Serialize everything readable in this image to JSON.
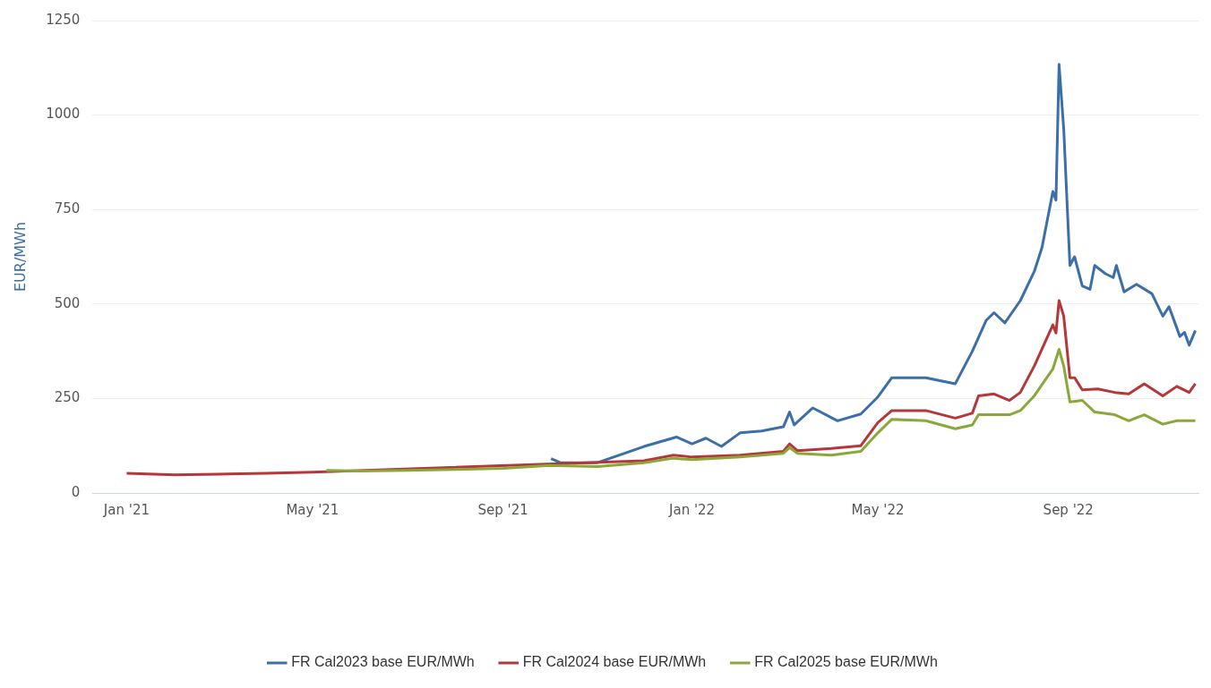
{
  "chart_data": {
    "type": "line",
    "ylabel": "EUR/MWh",
    "xlim": [
      "2020-12-10",
      "2022-11-24"
    ],
    "xticks": [
      {
        "value": "2021-01-01",
        "label": "Jan '21"
      },
      {
        "value": "2021-05-01",
        "label": "May '21"
      },
      {
        "value": "2021-09-01",
        "label": "Sep '21"
      },
      {
        "value": "2022-01-01",
        "label": "Jan '22"
      },
      {
        "value": "2022-05-01",
        "label": "May '22"
      },
      {
        "value": "2022-09-01",
        "label": "Sep '22"
      }
    ],
    "ylim": [
      0,
      1250
    ],
    "yticks": [
      0,
      250,
      500,
      750,
      1000,
      1250
    ],
    "grid": "y",
    "legend": "bottom",
    "marker": "none",
    "line_style": "solid",
    "series": [
      {
        "name": "FR Cal2023 base EUR/MWh",
        "color": "#3c6ea8",
        "x": [
          "2021-10-02",
          "2021-10-08",
          "2021-11-01",
          "2021-12-01",
          "2021-12-22",
          "2022-01-01",
          "2022-01-10",
          "2022-01-20",
          "2022-02-01",
          "2022-02-15",
          "2022-03-01",
          "2022-03-05",
          "2022-03-08",
          "2022-03-20",
          "2022-04-05",
          "2022-04-20",
          "2022-05-01",
          "2022-05-10",
          "2022-06-01",
          "2022-06-20",
          "2022-07-01",
          "2022-07-10",
          "2022-07-15",
          "2022-07-22",
          "2022-08-01",
          "2022-08-10",
          "2022-08-15",
          "2022-08-22",
          "2022-08-24",
          "2022-08-26",
          "2022-08-29",
          "2022-09-02",
          "2022-09-05",
          "2022-09-10",
          "2022-09-15",
          "2022-09-18",
          "2022-09-25",
          "2022-09-30",
          "2022-10-02",
          "2022-10-07",
          "2022-10-15",
          "2022-10-25",
          "2022-11-01",
          "2022-11-05",
          "2022-11-12",
          "2022-11-15",
          "2022-11-18",
          "2022-11-22"
        ],
        "values": [
          91,
          80,
          80,
          123,
          148,
          130,
          145,
          123,
          159,
          164,
          175,
          214,
          180,
          225,
          191,
          209,
          254,
          305,
          305,
          289,
          375,
          457,
          477,
          450,
          509,
          586,
          650,
          798,
          775,
          1134,
          964,
          602,
          625,
          548,
          539,
          602,
          580,
          570,
          602,
          532,
          552,
          527,
          468,
          493,
          414,
          425,
          391,
          430
        ]
      },
      {
        "name": "FR Cal2024 base EUR/MWh",
        "color": "#b5373a",
        "x": [
          "2021-01-01",
          "2021-02-01",
          "2021-03-01",
          "2021-04-01",
          "2021-05-01",
          "2021-12-01",
          "2021-12-20",
          "2022-01-01",
          "2022-02-01",
          "2022-03-01",
          "2022-03-05",
          "2022-03-10",
          "2022-04-01",
          "2022-04-20",
          "2022-05-01",
          "2022-05-10",
          "2022-06-01",
          "2022-06-20",
          "2022-07-01",
          "2022-07-05",
          "2022-07-15",
          "2022-07-25",
          "2022-08-01",
          "2022-08-10",
          "2022-08-22",
          "2022-08-24",
          "2022-08-26",
          "2022-08-29",
          "2022-09-02",
          "2022-09-05",
          "2022-09-10",
          "2022-09-20",
          "2022-10-01",
          "2022-10-10",
          "2022-10-20",
          "2022-11-01",
          "2022-11-10",
          "2022-11-18",
          "2022-11-22"
        ],
        "values": [
          52,
          48,
          50,
          52,
          55,
          85,
          100,
          95,
          100,
          110,
          130,
          112,
          118,
          125,
          186,
          218,
          218,
          198,
          211,
          257,
          262,
          245,
          266,
          336,
          445,
          423,
          509,
          468,
          305,
          305,
          273,
          275,
          266,
          262,
          289,
          257,
          282,
          266,
          289
        ]
      },
      {
        "name": "FR Cal2025 base EUR/MWh",
        "color": "#8aa83a",
        "x": [
          "2021-05-10",
          "2021-06-01",
          "2021-07-01",
          "2021-08-01",
          "2021-09-01",
          "2021-10-01",
          "2021-11-01",
          "2021-12-01",
          "2021-12-20",
          "2022-01-01",
          "2022-02-01",
          "2022-03-01",
          "2022-03-05",
          "2022-03-10",
          "2022-04-01",
          "2022-04-20",
          "2022-05-01",
          "2022-05-10",
          "2022-06-01",
          "2022-06-20",
          "2022-07-01",
          "2022-07-05",
          "2022-07-25",
          "2022-08-01",
          "2022-08-10",
          "2022-08-22",
          "2022-08-26",
          "2022-08-29",
          "2022-09-02",
          "2022-09-10",
          "2022-09-18",
          "2022-10-01",
          "2022-10-10",
          "2022-10-20",
          "2022-11-01",
          "2022-11-10",
          "2022-11-22"
        ],
        "values": [
          60,
          58,
          60,
          62,
          65,
          73,
          70,
          80,
          92,
          88,
          95,
          105,
          120,
          105,
          100,
          110,
          159,
          195,
          191,
          170,
          180,
          207,
          207,
          218,
          257,
          328,
          380,
          336,
          241,
          245,
          214,
          207,
          191,
          207,
          182,
          191,
          191
        ]
      }
    ]
  }
}
